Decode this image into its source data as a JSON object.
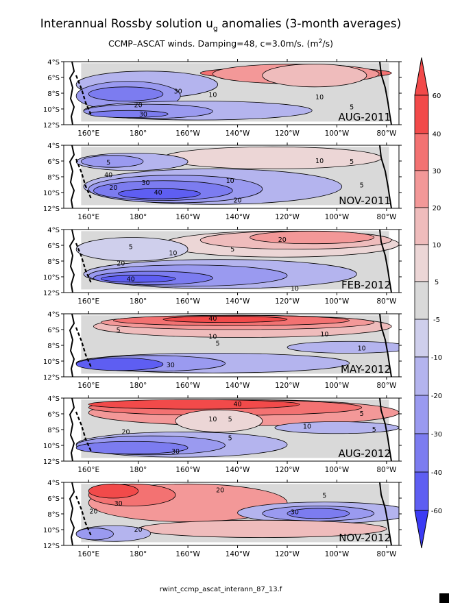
{
  "title": "Interannual Rossby solution u",
  "title_sub": "g",
  "title_tail": " anomalies (3-month averages)",
  "subtitle": "CCMP–ASCAT winds. Damping=48, c=3.0m/s. (m",
  "subtitle_sup": "2",
  "subtitle_tail": "/s)",
  "footer": "rwint_ccmp_ascat_interann_87_13.f",
  "colors": {
    "red_strong": "#f24a4a",
    "red_mid": "#f37272",
    "red_light": "#f39898",
    "pink": "#efbcbc",
    "pink_light": "#ecd6d6",
    "gray": "#d9d9d9",
    "lav_light": "#cfcfec",
    "lav": "#b4b4ee",
    "blue_light": "#9a9af0",
    "blue_mid": "#7c7cf0",
    "blue": "#5e5ef2",
    "blue_strong": "#3b3bf4"
  },
  "chart_data": {
    "type": "heatmap",
    "x_ticks": [
      "160°E",
      "180°",
      "160°W",
      "140°W",
      "120°W",
      "100°W",
      "80°W"
    ],
    "y_ticks": [
      "4°S",
      "6°S",
      "8°S",
      "10°S",
      "12°S"
    ],
    "xlim": [
      "150°E",
      "75°W"
    ],
    "ylim": [
      "12°S",
      "4°S"
    ],
    "colorbar": {
      "labels": [
        "60",
        "40",
        "30",
        "20",
        "10",
        "5",
        "-5",
        "-10",
        "-20",
        "-30",
        "-40",
        "-60"
      ],
      "levels": [
        60,
        40,
        30,
        20,
        10,
        5,
        -5,
        -10,
        -20,
        -30,
        -40,
        -60
      ]
    },
    "panels": [
      {
        "label": "AUG-2011",
        "contour_labels": [
          {
            "text": "30",
            "lon": 196,
            "lat": -7.8
          },
          {
            "text": "10",
            "lon": 210,
            "lat": -8.2
          },
          {
            "text": "20",
            "lon": 180,
            "lat": -9.5
          },
          {
            "text": "30",
            "lon": 182,
            "lat": -10.7
          },
          {
            "text": "10",
            "lon": 253,
            "lat": -8.5
          },
          {
            "text": "5",
            "lon": 266,
            "lat": -9.8
          }
        ],
        "regions": [
          {
            "level": 30,
            "lat": [
              -4.7,
              -6.2
            ],
            "lon": [
              205,
              282
            ]
          },
          {
            "level": 20,
            "lat": [
              -4.3,
              -6.8
            ],
            "lon": [
              210,
              277
            ]
          },
          {
            "level": 10,
            "lat": [
              -4.3,
              -7.2
            ],
            "lon": [
              230,
              272
            ]
          },
          {
            "level": -10,
            "lat": [
              -5.2,
              -8.6
            ],
            "lon": [
              155,
              212
            ]
          },
          {
            "level": -20,
            "lat": [
              -6.5,
              -10.2
            ],
            "lon": [
              155,
              197
            ]
          },
          {
            "level": -30,
            "lat": [
              -7.2,
              -9.0
            ],
            "lon": [
              160,
              190
            ]
          },
          {
            "level": -10,
            "lat": [
              -9.0,
              -11.4
            ],
            "lon": [
              158,
              250
            ]
          },
          {
            "level": -20,
            "lat": [
              -9.4,
              -11.2
            ],
            "lon": [
              158,
              210
            ]
          },
          {
            "level": -30,
            "lat": [
              -10.2,
              -11.1
            ],
            "lon": [
              160,
              192
            ]
          }
        ]
      },
      {
        "label": "NOV-2011",
        "contour_labels": [
          {
            "text": "5",
            "lon": 168,
            "lat": -6.2
          },
          {
            "text": "10",
            "lon": 253,
            "lat": -6.0
          },
          {
            "text": "5",
            "lon": 266,
            "lat": -6.1
          },
          {
            "text": "40",
            "lon": 168,
            "lat": -7.8
          },
          {
            "text": "30",
            "lon": 183,
            "lat": -8.8
          },
          {
            "text": "20",
            "lon": 170,
            "lat": -9.4
          },
          {
            "text": "40",
            "lon": 188,
            "lat": -10.0
          },
          {
            "text": "10",
            "lon": 217,
            "lat": -8.5
          },
          {
            "text": "5",
            "lon": 270,
            "lat": -9.1
          },
          {
            "text": "20",
            "lon": 220,
            "lat": -11.0
          }
        ],
        "regions": [
          {
            "level": 10,
            "lat": [
              -4.3,
              -6.4
            ],
            "lon": [
              198,
              272
            ]
          },
          {
            "level": 5,
            "lat": [
              -4.2,
              -7.0
            ],
            "lon": [
              190,
              278
            ]
          },
          {
            "level": -10,
            "lat": [
              -7.0,
              -11.5
            ],
            "lon": [
              158,
              262
            ]
          },
          {
            "level": -20,
            "lat": [
              -7.8,
              -11.3
            ],
            "lon": [
              160,
              230
            ]
          },
          {
            "level": -30,
            "lat": [
              -8.5,
              -11.0
            ],
            "lon": [
              162,
              218
            ]
          },
          {
            "level": -40,
            "lat": [
              -9.5,
              -10.8
            ],
            "lon": [
              172,
              205
            ]
          },
          {
            "level": -10,
            "lat": [
              -5.0,
              -7.2
            ],
            "lon": [
              155,
              200
            ]
          },
          {
            "level": -20,
            "lat": [
              -5.3,
              -6.8
            ],
            "lon": [
              157,
              182
            ]
          }
        ]
      },
      {
        "label": "FEB-2012",
        "contour_labels": [
          {
            "text": "5",
            "lon": 177,
            "lat": -6.2
          },
          {
            "text": "10",
            "lon": 194,
            "lat": -7.0
          },
          {
            "text": "5",
            "lon": 218,
            "lat": -6.5
          },
          {
            "text": "20",
            "lon": 238,
            "lat": -5.3
          },
          {
            "text": "20",
            "lon": 173,
            "lat": -8.3
          },
          {
            "text": "40",
            "lon": 177,
            "lat": -10.3
          },
          {
            "text": "10",
            "lon": 243,
            "lat": -11.5
          }
        ],
        "regions": [
          {
            "level": 5,
            "lat": [
              -4.2,
              -7.5
            ],
            "lon": [
              190,
              285
            ]
          },
          {
            "level": 10,
            "lat": [
              -4.2,
              -6.5
            ],
            "lon": [
              205,
              282
            ]
          },
          {
            "level": 20,
            "lat": [
              -4.2,
              -5.8
            ],
            "lon": [
              225,
              275
            ]
          },
          {
            "level": -10,
            "lat": [
              -7.8,
              -11.5
            ],
            "lon": [
              158,
              268
            ]
          },
          {
            "level": -20,
            "lat": [
              -8.5,
              -11.2
            ],
            "lon": [
              160,
              240
            ]
          },
          {
            "level": -30,
            "lat": [
              -9.3,
              -11.0
            ],
            "lon": [
              162,
              210
            ]
          },
          {
            "level": -40,
            "lat": [
              -9.8,
              -10.7
            ],
            "lon": [
              165,
              195
            ]
          },
          {
            "level": -5,
            "lat": [
              -5.0,
              -8.0
            ],
            "lon": [
              155,
              200
            ]
          }
        ]
      },
      {
        "label": "MAY-2012",
        "contour_labels": [
          {
            "text": "40",
            "lon": 210,
            "lat": -4.6
          },
          {
            "text": "5",
            "lon": 172,
            "lat": -6.1
          },
          {
            "text": "10",
            "lon": 210,
            "lat": -6.9
          },
          {
            "text": "5",
            "lon": 212,
            "lat": -7.8
          },
          {
            "text": "10",
            "lon": 255,
            "lat": -6.6
          },
          {
            "text": "10",
            "lon": 270,
            "lat": -8.4
          },
          {
            "text": "30",
            "lon": 193,
            "lat": -10.5
          }
        ],
        "regions": [
          {
            "level": 10,
            "lat": [
              -4.2,
              -7.0
            ],
            "lon": [
              162,
              282
            ]
          },
          {
            "level": 20,
            "lat": [
              -4.2,
              -6.0
            ],
            "lon": [
              165,
              275
            ]
          },
          {
            "level": 30,
            "lat": [
              -4.2,
              -5.5
            ],
            "lon": [
              170,
              265
            ]
          },
          {
            "level": 40,
            "lat": [
              -4.3,
              -5.1
            ],
            "lon": [
              190,
              240
            ]
          },
          {
            "level": -10,
            "lat": [
              -7.5,
              -9.0
            ],
            "lon": [
              240,
              290
            ]
          },
          {
            "level": -10,
            "lat": [
              -9.0,
              -11.5
            ],
            "lon": [
              155,
              265
            ]
          },
          {
            "level": -20,
            "lat": [
              -9.3,
              -11.3
            ],
            "lon": [
              155,
              215
            ]
          },
          {
            "level": -40,
            "lat": [
              -9.6,
              -11.2
            ],
            "lon": [
              155,
              190
            ]
          }
        ]
      },
      {
        "label": "AUG-2012",
        "contour_labels": [
          {
            "text": "40",
            "lon": 220,
            "lat": -4.8
          },
          {
            "text": "10",
            "lon": 210,
            "lat": -6.7
          },
          {
            "text": "5",
            "lon": 217,
            "lat": -6.7
          },
          {
            "text": "5",
            "lon": 270,
            "lat": -6.0
          },
          {
            "text": "5",
            "lon": 217,
            "lat": -9.1
          },
          {
            "text": "10",
            "lon": 248,
            "lat": -7.6
          },
          {
            "text": "5",
            "lon": 275,
            "lat": -8.0
          },
          {
            "text": "20",
            "lon": 175,
            "lat": -8.3
          },
          {
            "text": "30",
            "lon": 195,
            "lat": -10.8
          }
        ],
        "regions": [
          {
            "level": 20,
            "lat": [
              -4.2,
              -7.5
            ],
            "lon": [
              160,
              285
            ]
          },
          {
            "level": 30,
            "lat": [
              -4.2,
              -6.2
            ],
            "lon": [
              160,
              270
            ]
          },
          {
            "level": 40,
            "lat": [
              -4.2,
              -5.4
            ],
            "lon": [
              160,
              245
            ]
          },
          {
            "level": 5,
            "lat": [
              -5.5,
              -8.3
            ],
            "lon": [
              195,
              230
            ]
          },
          {
            "level": -10,
            "lat": [
              -7.0,
              -8.5
            ],
            "lon": [
              235,
              285
            ]
          },
          {
            "level": -10,
            "lat": [
              -8.3,
              -11.5
            ],
            "lon": [
              155,
              240
            ]
          },
          {
            "level": -20,
            "lat": [
              -8.8,
              -11.2
            ],
            "lon": [
              155,
              215
            ]
          },
          {
            "level": -30,
            "lat": [
              -9.5,
              -11.1
            ],
            "lon": [
              155,
              200
            ]
          }
        ]
      },
      {
        "label": "NOV-2012",
        "contour_labels": [
          {
            "text": "20",
            "lon": 213,
            "lat": -5.0
          },
          {
            "text": "5",
            "lon": 255,
            "lat": -5.7
          },
          {
            "text": "30",
            "lon": 172,
            "lat": -6.7
          },
          {
            "text": "20",
            "lon": 162,
            "lat": -7.7
          },
          {
            "text": "30",
            "lon": 243,
            "lat": -7.8
          },
          {
            "text": "20",
            "lon": 180,
            "lat": -10.0
          }
        ],
        "regions": [
          {
            "level": 20,
            "lat": [
              -4.2,
              -9.0
            ],
            "lon": [
              160,
              240
            ]
          },
          {
            "level": 30,
            "lat": [
              -4.2,
              -7.0
            ],
            "lon": [
              160,
              195
            ]
          },
          {
            "level": 40,
            "lat": [
              -4.2,
              -6.0
            ],
            "lon": [
              160,
              180
            ]
          },
          {
            "level": -10,
            "lat": [
              -6.5,
              -9.2
            ],
            "lon": [
              220,
              290
            ]
          },
          {
            "level": -20,
            "lat": [
              -7.0,
              -8.9
            ],
            "lon": [
              230,
              275
            ]
          },
          {
            "level": -30,
            "lat": [
              -7.3,
              -8.6
            ],
            "lon": [
              240,
              265
            ]
          },
          {
            "level": 20,
            "lat": [
              -9.2,
              -10.7
            ],
            "lon": [
              200,
              270
            ]
          },
          {
            "level": 10,
            "lat": [
              -8.8,
              -11.0
            ],
            "lon": [
              180,
              280
            ]
          },
          {
            "level": -10,
            "lat": [
              -9.5,
              -11.5
            ],
            "lon": [
              155,
              185
            ]
          },
          {
            "level": -20,
            "lat": [
              -9.8,
              -11.3
            ],
            "lon": [
              155,
              170
            ]
          }
        ]
      }
    ]
  }
}
